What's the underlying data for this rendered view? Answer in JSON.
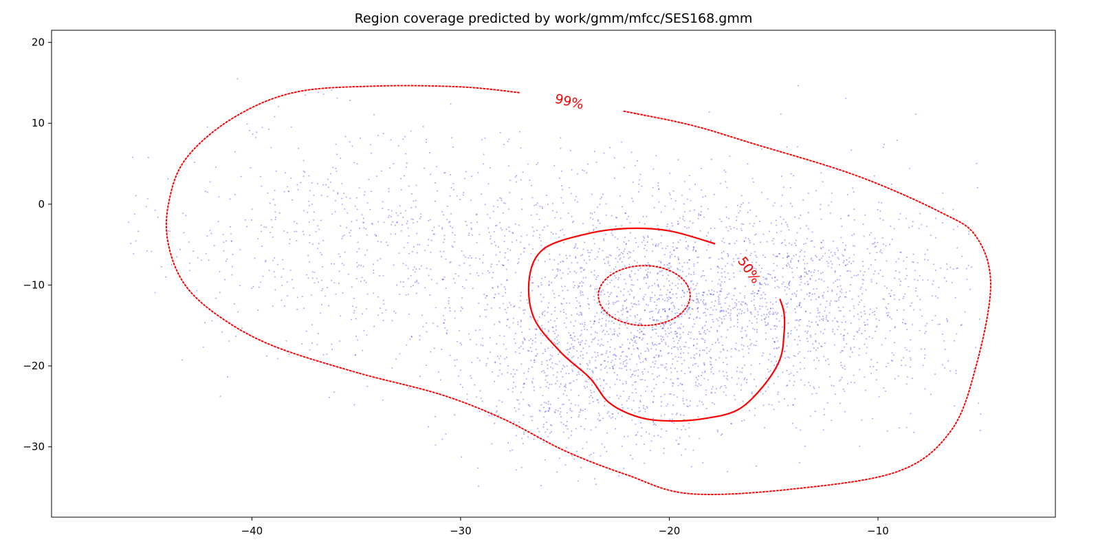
{
  "chart_data": {
    "type": "scatter",
    "title": "Region coverage predicted by work/gmm/mfcc/SES168.gmm",
    "xlabel": "",
    "ylabel": "",
    "xlim": [
      -49.6,
      -1.5
    ],
    "ylim": [
      -38.7,
      21.5
    ],
    "x_ticks": [
      -40,
      -30,
      -20,
      -10
    ],
    "x_tick_labels": [
      "−40",
      "−30",
      "−20",
      "−10"
    ],
    "y_ticks": [
      20,
      10,
      0,
      -10,
      -20,
      -30
    ],
    "y_tick_labels": [
      "20",
      "10",
      "0",
      "−10",
      "−20",
      "−30"
    ],
    "grid": false,
    "colors": {
      "points": "#0000ff",
      "contours": "#ff0000",
      "axes": "#000000"
    },
    "scatter_distribution": {
      "approx_points": 4000,
      "center": [
        -19.5,
        -12.5
      ],
      "note_components": [
        {
          "mean": [
            -21,
            -12
          ],
          "std": [
            4.5,
            7
          ],
          "weight": 0.38
        },
        {
          "mean": [
            -13,
            -12
          ],
          "std": [
            4,
            7
          ],
          "weight": 0.27
        },
        {
          "mean": [
            -34,
            -4
          ],
          "std": [
            5.5,
            7
          ],
          "weight": 0.2
        },
        {
          "mean": [
            -24,
            -22
          ],
          "std": [
            3,
            5
          ],
          "weight": 0.15
        }
      ]
    },
    "contours": [
      {
        "label": "99%",
        "style": "dotted",
        "points": [
          [
            -27.2,
            13.8
          ],
          [
            -30,
            14.5
          ],
          [
            -34,
            14.6
          ],
          [
            -38,
            13.8
          ],
          [
            -41,
            10.5
          ],
          [
            -43.2,
            5.5
          ],
          [
            -44,
            0
          ],
          [
            -44,
            -5
          ],
          [
            -43.2,
            -10
          ],
          [
            -41.5,
            -14
          ],
          [
            -39,
            -17.5
          ],
          [
            -35,
            -20.8
          ],
          [
            -31,
            -23.5
          ],
          [
            -28,
            -26.5
          ],
          [
            -25,
            -30.5
          ],
          [
            -22,
            -33.5
          ],
          [
            -19,
            -35.8
          ],
          [
            -14,
            -35.2
          ],
          [
            -9,
            -33
          ],
          [
            -6.5,
            -28
          ],
          [
            -5.3,
            -20
          ],
          [
            -4.6,
            -10
          ],
          [
            -5.3,
            -4
          ],
          [
            -7,
            -1
          ],
          [
            -11,
            3.5
          ],
          [
            -16,
            7.5
          ],
          [
            -19,
            9.8
          ],
          [
            -22.2,
            11.5
          ]
        ]
      },
      {
        "label": "50%",
        "style": "solid",
        "points": [
          [
            -17.8,
            -4.9
          ],
          [
            -20,
            -3.3
          ],
          [
            -22,
            -3
          ],
          [
            -24,
            -3.7
          ],
          [
            -26,
            -5.5
          ],
          [
            -26.7,
            -9
          ],
          [
            -26.5,
            -14
          ],
          [
            -25.2,
            -18.3
          ],
          [
            -23.8,
            -21.5
          ],
          [
            -22.9,
            -24.5
          ],
          [
            -21.5,
            -26.3
          ],
          [
            -20,
            -26.8
          ],
          [
            -18.3,
            -26.5
          ],
          [
            -16.7,
            -25.4
          ],
          [
            -15.5,
            -22.5
          ],
          [
            -14.7,
            -19.2
          ],
          [
            -14.5,
            -16
          ],
          [
            -14.5,
            -13.5
          ],
          [
            -14.7,
            -11.7
          ]
        ]
      },
      {
        "label": "",
        "style": "dotted",
        "ellipse": {
          "cx": -21.2,
          "cy": -11.3,
          "rx": 2.2,
          "ry": 3.7
        }
      }
    ],
    "contour_labels": [
      {
        "text": "99%",
        "x": -24.8,
        "y": 12.6,
        "rotation_deg": 13
      },
      {
        "text": "50%",
        "x": -16.2,
        "y": -8.2,
        "rotation_deg": 55
      }
    ]
  }
}
